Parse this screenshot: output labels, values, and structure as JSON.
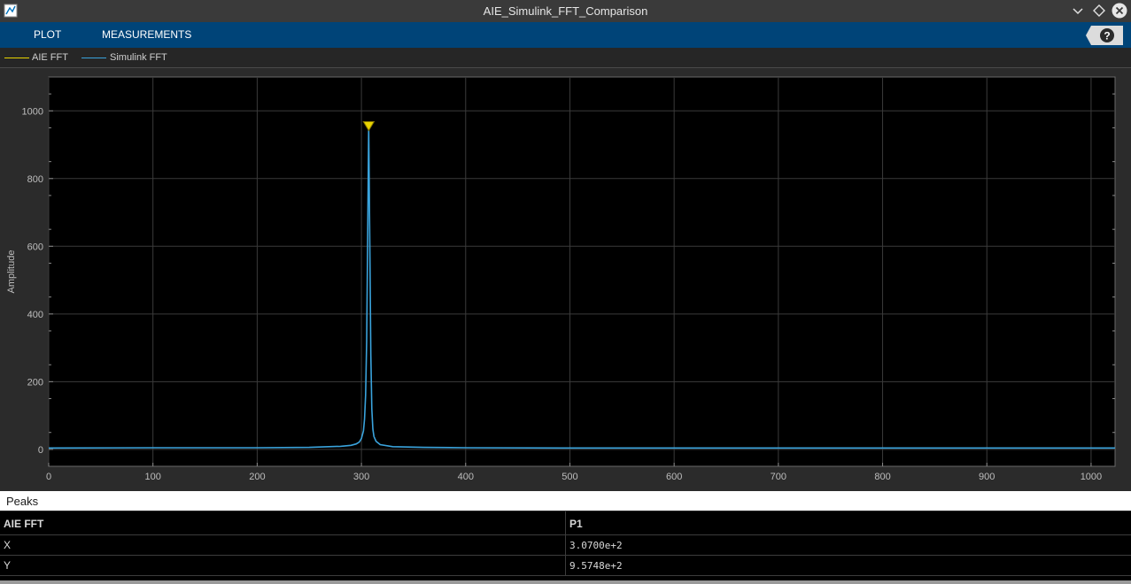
{
  "window": {
    "title": "AIE_Simulink_FFT_Comparison"
  },
  "toolstrip": {
    "tabs": [
      "PLOT",
      "MEASUREMENTS"
    ],
    "help_glyph": "?"
  },
  "legend": [
    {
      "label": "AIE FFT",
      "color": "#e8d300"
    },
    {
      "label": "Simulink FFT",
      "color": "#3aa3dc"
    }
  ],
  "chart_data": {
    "type": "line",
    "title": "",
    "xlabel": "",
    "ylabel": "Amplitude",
    "xlim": [
      0,
      1023
    ],
    "ylim": [
      -50,
      1100
    ],
    "xticks": [
      0,
      100,
      200,
      300,
      400,
      500,
      600,
      700,
      800,
      900,
      1000
    ],
    "yticks": [
      0,
      200,
      400,
      600,
      800,
      1000
    ],
    "grid": true,
    "background": "#000000",
    "series": [
      {
        "name": "Simulink FFT",
        "color": "#3aa3dc",
        "points": [
          [
            0,
            4
          ],
          [
            100,
            5
          ],
          [
            200,
            5
          ],
          [
            250,
            6
          ],
          [
            280,
            9
          ],
          [
            290,
            12
          ],
          [
            295,
            16
          ],
          [
            298,
            22
          ],
          [
            300,
            32
          ],
          [
            302,
            55
          ],
          [
            303,
            90
          ],
          [
            304,
            160
          ],
          [
            305,
            320
          ],
          [
            306,
            620
          ],
          [
            307,
            957.48
          ],
          [
            308,
            620
          ],
          [
            309,
            280
          ],
          [
            310,
            120
          ],
          [
            311,
            60
          ],
          [
            312,
            38
          ],
          [
            314,
            24
          ],
          [
            318,
            14
          ],
          [
            330,
            8
          ],
          [
            360,
            6
          ],
          [
            400,
            5
          ],
          [
            500,
            4
          ],
          [
            600,
            4
          ],
          [
            700,
            4
          ],
          [
            800,
            4
          ],
          [
            900,
            4
          ],
          [
            1023,
            4
          ]
        ]
      }
    ],
    "marker": {
      "label": "P1",
      "x": 307,
      "y": 957.48,
      "color": "#e8d300"
    }
  },
  "peaks": {
    "header": "Peaks",
    "columns": [
      "AIE FFT",
      "P1"
    ],
    "rows": [
      {
        "label": "X",
        "value": "3.0700e+2"
      },
      {
        "label": "Y",
        "value": "9.5748e+2"
      }
    ]
  }
}
